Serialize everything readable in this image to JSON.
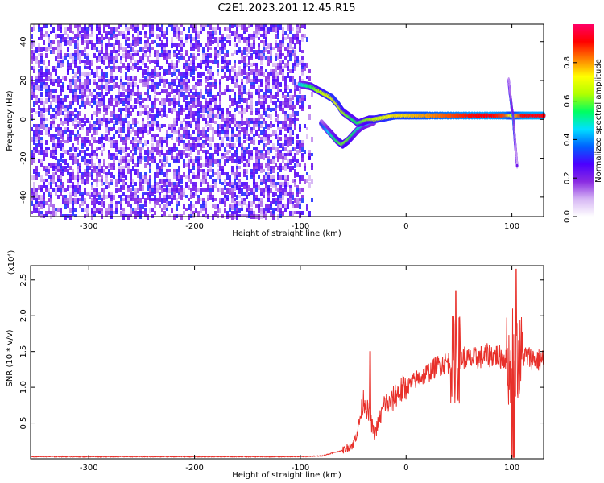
{
  "chart_data": [
    {
      "type": "heatmap",
      "title": "C2E1.2023.201.12.45.R15",
      "xlabel": "Height of straight line (km)",
      "ylabel": "Frequency (Hz)",
      "xlim": [
        -355,
        130
      ],
      "ylim": [
        -50,
        49
      ],
      "x_ticks": [
        -300,
        -200,
        -100,
        0,
        100
      ],
      "x_tick_labels": [
        "-300",
        "-200",
        "-100",
        "0",
        "100"
      ],
      "y_ticks": [
        -40,
        -20,
        0,
        20,
        40
      ],
      "y_tick_labels": [
        "-40",
        "-20",
        "0",
        "20",
        "40"
      ],
      "colorbar": {
        "label": "Normalized spectral amplitude",
        "range": [
          0,
          1
        ],
        "ticks": [
          0.0,
          0.2,
          0.4,
          0.6,
          0.8
        ],
        "tick_labels": [
          "0.0",
          "0.2",
          "0.4",
          "0.6",
          "0.8"
        ],
        "colormap": [
          "#ffffff",
          "#d6b6f4",
          "#8a2be2",
          "#4b00ff",
          "#0060ff",
          "#00e0ff",
          "#00ff60",
          "#b0ff00",
          "#ffff00",
          "#ff8000",
          "#ff0000",
          "#ff0066"
        ]
      },
      "noise_region": {
        "x_range": [
          -355,
          -88
        ],
        "y_range": [
          -50,
          49
        ],
        "typical_amplitude": 0.15
      },
      "ridge": {
        "x": [
          -100,
          -90,
          -80,
          -70,
          -65,
          -60,
          -55,
          -50,
          -45,
          -40,
          -35,
          -30,
          -20,
          -10,
          0,
          10,
          20,
          40,
          60,
          80,
          95,
          100,
          110,
          120,
          130
        ],
        "y": [
          18,
          17,
          14,
          11,
          8,
          4,
          2,
          0,
          -2,
          -1,
          0,
          0,
          1,
          2,
          2,
          2,
          2,
          2,
          2,
          2,
          2,
          2,
          2,
          2,
          2
        ],
        "amplitude": [
          0.45,
          0.55,
          0.65,
          0.7,
          0.7,
          0.65,
          0.6,
          0.55,
          0.55,
          0.6,
          0.62,
          0.65,
          0.7,
          0.75,
          0.75,
          0.78,
          0.8,
          0.85,
          0.9,
          0.92,
          0.85,
          0.7,
          0.9,
          0.92,
          0.92
        ]
      },
      "branch": {
        "x": [
          -80,
          -75,
          -70,
          -65,
          -60,
          -55,
          -50,
          -45,
          -40,
          -35,
          -30
        ],
        "y": [
          -2,
          -5,
          -8,
          -11,
          -13,
          -11,
          -8,
          -5,
          -3,
          -2,
          -1
        ],
        "amplitude": [
          0.3,
          0.4,
          0.5,
          0.55,
          0.6,
          0.6,
          0.55,
          0.5,
          0.5,
          0.45,
          0.4
        ]
      },
      "spike": {
        "x": [
          97,
          98,
          99,
          100,
          101,
          102,
          103,
          104,
          105
        ],
        "y": [
          20,
          14,
          10,
          5,
          2,
          -5,
          -12,
          -18,
          -24
        ],
        "amplitude": [
          0.25,
          0.3,
          0.35,
          0.45,
          0.5,
          0.35,
          0.3,
          0.25,
          0.22
        ]
      }
    },
    {
      "type": "line",
      "title": "",
      "xlabel": "Height of straight line (km)",
      "ylabel": "SNR (10 * v/v)",
      "y_scale_label": "(x10⁴)",
      "xlim": [
        -355,
        130
      ],
      "ylim": [
        0,
        2.7
      ],
      "x_ticks": [
        -300,
        -200,
        -100,
        0,
        100
      ],
      "x_tick_labels": [
        "-300",
        "-200",
        "-100",
        "0",
        "100"
      ],
      "y_ticks": [
        0.5,
        1.0,
        1.5,
        2.0,
        2.5
      ],
      "y_tick_labels": [
        "0.5",
        "1.0",
        "1.5",
        "2.0",
        "2.5"
      ],
      "color": "#e8302a",
      "series": [
        {
          "x": [
            -355,
            -300,
            -250,
            -200,
            -150,
            -100,
            -80,
            -60,
            -50,
            -45,
            -40,
            -35,
            -30,
            -25,
            -20,
            -15,
            -10,
            -5,
            0,
            5,
            10,
            15,
            20,
            25,
            30,
            35,
            40,
            45,
            50,
            55,
            60,
            65,
            70,
            75,
            80,
            85,
            90,
            95,
            100,
            103,
            106,
            110,
            115,
            120,
            125,
            130
          ],
          "y": [
            0.03,
            0.03,
            0.03,
            0.03,
            0.03,
            0.03,
            0.04,
            0.12,
            0.2,
            0.45,
            0.85,
            0.6,
            0.35,
            0.55,
            0.8,
            0.75,
            0.9,
            0.95,
            1.0,
            1.05,
            1.12,
            1.15,
            1.2,
            1.25,
            1.3,
            1.33,
            1.35,
            1.4,
            1.4,
            1.42,
            1.38,
            1.4,
            1.42,
            1.44,
            1.45,
            1.45,
            1.42,
            1.4,
            1.2,
            1.6,
            1.35,
            1.45,
            1.42,
            1.4,
            1.38,
            1.38
          ]
        }
      ],
      "spikes": [
        {
          "x": -34,
          "y": 1.5
        },
        {
          "x": 47,
          "y": 2.35
        },
        {
          "x": 104,
          "y": 2.65
        },
        {
          "x": 101,
          "y": 2.1
        }
      ]
    }
  ]
}
